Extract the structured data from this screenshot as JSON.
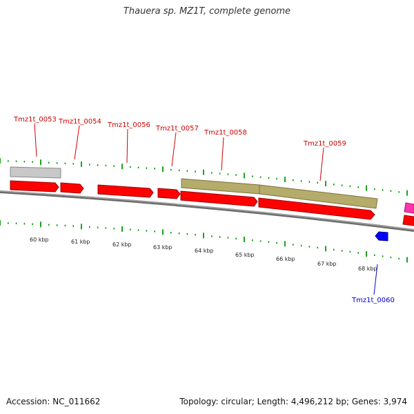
{
  "header": {
    "title": "Thauera sp. MZ1T, complete genome"
  },
  "footer": {
    "accession": "Accession: NC_011662",
    "summary": "Topology: circular; Length: 4,496,212 bp; Genes: 3,974"
  },
  "colors": {
    "gene_red": "#ff0000",
    "gene_olive": "#b5ab6a",
    "gene_grey": "#c8c8c8",
    "gene_blue": "#0000ff",
    "gene_pink": "#ff33aa",
    "tick_green": "#009900",
    "backbone": "#808080",
    "label_red": "#cc0000",
    "label_blue": "#0000cc"
  },
  "scale_labels": [
    "60 kbp",
    "61 kbp",
    "62 kbp",
    "63 kbp",
    "64 kbp",
    "65 kbp",
    "66 kbp",
    "67 kbp",
    "68 kbp"
  ],
  "gene_labels": [
    {
      "text": "Tmz1t_0053",
      "color": "red"
    },
    {
      "text": "Tmz1t_0054",
      "color": "red"
    },
    {
      "text": "Tmz1t_0056",
      "color": "red"
    },
    {
      "text": "Tmz1t_0057",
      "color": "red"
    },
    {
      "text": "Tmz1t_0058",
      "color": "red"
    },
    {
      "text": "Tmz1t_0059",
      "color": "red"
    },
    {
      "text": "Tmz1t_0060",
      "color": "blue"
    }
  ]
}
